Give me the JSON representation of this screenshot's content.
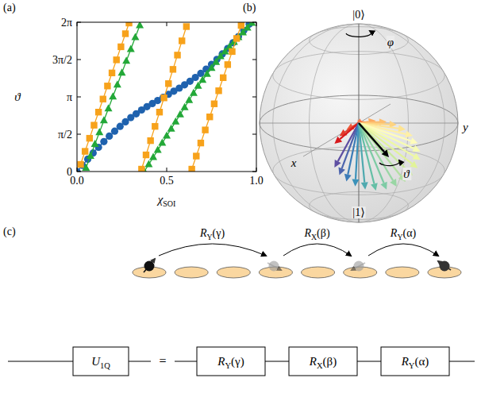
{
  "panel_labels": [
    "(a)",
    "(b)",
    "(c)"
  ],
  "chart_data": {
    "type": "line",
    "x_label": {
      "symbol": "χ",
      "subscript": "SOI"
    },
    "y_label": "ϑ",
    "xlim": [
      0,
      1
    ],
    "ylim": [
      0,
      6.2832
    ],
    "xticks": [
      {
        "value": 0,
        "label": "0.0"
      },
      {
        "value": 0.5,
        "label": "0.5"
      },
      {
        "value": 1,
        "label": "1.0"
      }
    ],
    "yticks": [
      0,
      {
        "value": 1.5708,
        "label": "π/2"
      },
      {
        "value": 3.1416,
        "label": "π"
      },
      {
        "value": 4.7124,
        "label": "3π/2"
      },
      {
        "value": 6.2832,
        "label": "2π"
      }
    ],
    "grid": false,
    "series": [
      {
        "color": "#1f62ae",
        "marker": "circle",
        "line_style": "solid",
        "x": [
          0,
          0.03,
          0.06,
          0.09,
          0.12,
          0.15,
          0.18,
          0.21,
          0.24,
          0.27,
          0.3,
          0.33,
          0.36,
          0.39,
          0.42,
          0.45,
          0.48,
          0.51,
          0.54,
          0.57,
          0.6,
          0.63,
          0.66,
          0.69,
          0.72,
          0.75,
          0.78,
          0.81,
          0.84,
          0.87,
          0.9,
          0.93,
          0.96
        ],
        "values": [
          0,
          0.26,
          0.52,
          0.78,
          1.02,
          1.26,
          1.49,
          1.7,
          1.9,
          2.09,
          2.27,
          2.43,
          2.59,
          2.73,
          2.86,
          2.99,
          3.12,
          3.25,
          3.38,
          3.51,
          3.65,
          3.8,
          3.96,
          4.13,
          4.31,
          4.51,
          4.72,
          4.95,
          5.18,
          5.42,
          5.68,
          5.94,
          6.2
        ]
      },
      {
        "color": "#23a838",
        "marker": "triangle",
        "line_style": "solid",
        "x": [
          0.05,
          0.075,
          0.1,
          0.125,
          0.15,
          0.175,
          0.2,
          0.225,
          0.25,
          0.275,
          0.3,
          0.325,
          0.35,
          null,
          0.375,
          0.4,
          0.425,
          0.45,
          0.475,
          0.5,
          0.525,
          0.55,
          0.575,
          0.6,
          0.625,
          0.65,
          0.675,
          0.7,
          0.725,
          0.75,
          0.775,
          0.8,
          0.825,
          0.85,
          0.875,
          0.9,
          0.925,
          0.95,
          0.975
        ],
        "values": [
          0.15,
          0.65,
          1.15,
          1.65,
          2.15,
          2.65,
          3.15,
          3.65,
          4.15,
          4.65,
          5.15,
          5.65,
          6.15,
          null,
          0,
          0.3,
          0.6,
          0.9,
          1.2,
          1.5,
          1.8,
          2.1,
          2.4,
          2.7,
          3.0,
          3.3,
          3.6,
          3.85,
          4.1,
          4.35,
          4.6,
          4.85,
          5.05,
          5.25,
          5.45,
          5.65,
          5.85,
          6.05,
          6.25
        ]
      },
      {
        "color": "#f7a21b",
        "marker": "square",
        "line_style": "solid",
        "x": [
          0.02,
          0.045,
          0.07,
          0.095,
          0.12,
          0.145,
          0.17,
          0.195,
          0.22,
          0.245,
          0.27,
          0.29,
          null,
          0.36,
          0.385,
          0.41,
          0.435,
          0.46,
          0.485,
          0.51,
          0.535,
          0.56,
          0.585,
          0.61,
          null,
          0.64,
          0.665,
          0.69,
          0.715,
          0.74,
          0.765,
          0.79,
          0.815,
          0.84,
          0.865,
          0.89,
          0.915
        ],
        "values": [
          0.3,
          0.85,
          1.4,
          1.95,
          2.5,
          3.05,
          3.6,
          4.15,
          4.7,
          5.25,
          5.8,
          6.25,
          null,
          0.1,
          0.7,
          1.3,
          1.9,
          2.5,
          3.1,
          3.7,
          4.3,
          4.9,
          5.5,
          6.1,
          null,
          0.1,
          0.65,
          1.2,
          1.75,
          2.3,
          2.85,
          3.4,
          3.95,
          4.5,
          5.05,
          5.6,
          6.15
        ]
      }
    ]
  },
  "bloch": {
    "north": "|0⟩",
    "south": "|1⟩",
    "x_axis": "x",
    "y_axis": "y",
    "azimuth": "φ",
    "polar": "ϑ"
  },
  "circuit": {
    "sequence": [
      {
        "symbol": "R",
        "sub": "Y",
        "arg": "(γ)"
      },
      {
        "symbol": "R",
        "sub": "X",
        "arg": "(β)"
      },
      {
        "symbol": "R",
        "sub": "Y",
        "arg": "(α)"
      }
    ],
    "unitary": {
      "symbol": "U",
      "sub": "1Q"
    },
    "equals": "="
  }
}
